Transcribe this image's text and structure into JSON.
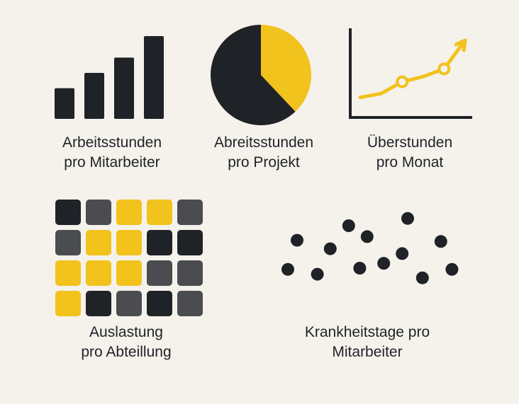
{
  "colors": {
    "background": "#f5f2ec",
    "dark": "#1f2226",
    "grey": "#4a4c50",
    "yellow": "#f2c21d"
  },
  "chart_data": [
    {
      "type": "bar",
      "caption": [
        "Arbeitsstunden",
        "pro Mitarbeiter"
      ],
      "categories": [
        "1",
        "2",
        "3",
        "4"
      ],
      "values": [
        2,
        3,
        4,
        5.4
      ],
      "ylim": [
        0,
        6
      ]
    },
    {
      "type": "pie",
      "caption": [
        "Abreitsstunden",
        "pro Projekt"
      ],
      "slices": [
        {
          "value": 38,
          "color": "yellow"
        },
        {
          "value": 62,
          "color": "dark"
        }
      ]
    },
    {
      "type": "line",
      "caption": [
        "Überstunden",
        "pro Monat"
      ],
      "x": [
        1,
        2,
        3,
        4,
        5,
        6
      ],
      "y": [
        1,
        1.3,
        2.2,
        2.6,
        3.2,
        5.4
      ],
      "marked_points": [
        2,
        4
      ],
      "ylim": [
        0,
        6
      ]
    },
    {
      "type": "heatmap",
      "caption": [
        "Auslastung",
        "pro Abteillung"
      ],
      "rows": [
        [
          "dark",
          "grey",
          "yellow",
          "yellow",
          "grey"
        ],
        [
          "grey",
          "yellow",
          "yellow",
          "dark",
          "dark"
        ],
        [
          "yellow",
          "yellow",
          "yellow",
          "grey",
          "grey"
        ],
        [
          "yellow",
          "dark",
          "grey",
          "dark",
          "grey"
        ]
      ]
    },
    {
      "type": "scatter",
      "caption": [
        "Krankheitstage pro",
        "Mitarbeiter"
      ],
      "points": [
        [
          1,
          2
        ],
        [
          1.5,
          4.4
        ],
        [
          2.6,
          1.6
        ],
        [
          3.3,
          3.7
        ],
        [
          4.3,
          5.6
        ],
        [
          5.3,
          4.7
        ],
        [
          4.9,
          2.1
        ],
        [
          6.2,
          2.5
        ],
        [
          7.2,
          3.3
        ],
        [
          7.5,
          6.2
        ],
        [
          8.3,
          1.3
        ],
        [
          9.3,
          4.3
        ],
        [
          9.9,
          2.0
        ]
      ],
      "xlim": [
        0,
        10
      ],
      "ylim": [
        0,
        7
      ]
    }
  ]
}
